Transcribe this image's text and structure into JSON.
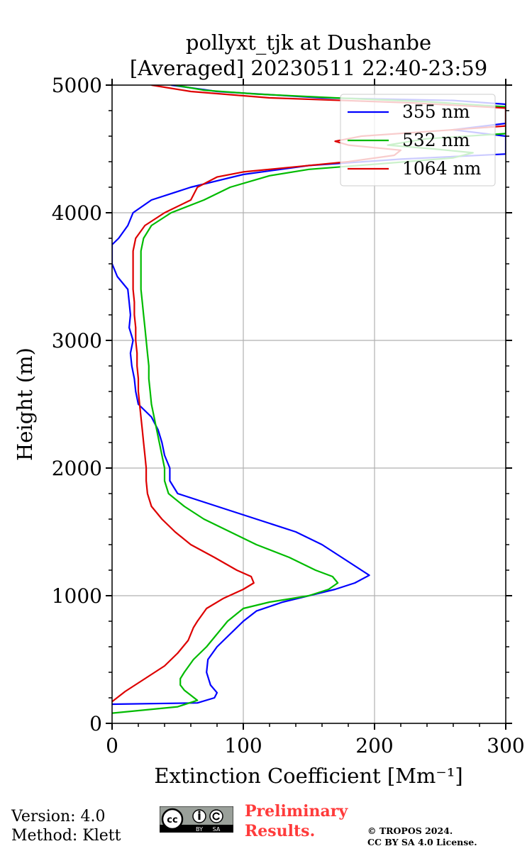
{
  "chart_data": {
    "type": "line",
    "title": "pollyxt_tjk at Dushanbe",
    "subtitle": "[Averaged] 20230511 22:40-23:59",
    "xlabel": "Extinction Coefficient [Mm⁻¹]",
    "ylabel": "Height (m)",
    "xlim": [
      0,
      300
    ],
    "ylim": [
      0,
      5000
    ],
    "xticks": [
      0,
      100,
      200,
      300
    ],
    "yticks": [
      0,
      1000,
      2000,
      3000,
      4000,
      5000
    ],
    "grid": true,
    "legend_position": "top-right",
    "series": [
      {
        "name": "355 nm",
        "color": "#0000ff",
        "points": [
          [
            0,
            150
          ],
          [
            65,
            160
          ],
          [
            78,
            200
          ],
          [
            80,
            240
          ],
          [
            75,
            300
          ],
          [
            72,
            400
          ],
          [
            73,
            500
          ],
          [
            80,
            600
          ],
          [
            90,
            700
          ],
          [
            100,
            800
          ],
          [
            110,
            880
          ],
          [
            130,
            950
          ],
          [
            150,
            1000
          ],
          [
            170,
            1050
          ],
          [
            185,
            1100
          ],
          [
            196,
            1160
          ],
          [
            190,
            1200
          ],
          [
            175,
            1300
          ],
          [
            160,
            1400
          ],
          [
            140,
            1500
          ],
          [
            110,
            1600
          ],
          [
            80,
            1700
          ],
          [
            50,
            1800
          ],
          [
            44,
            1900
          ],
          [
            44,
            2000
          ],
          [
            40,
            2100
          ],
          [
            38,
            2200
          ],
          [
            35,
            2300
          ],
          [
            30,
            2400
          ],
          [
            20,
            2500
          ],
          [
            18,
            2600
          ],
          [
            17,
            2700
          ],
          [
            15,
            2800
          ],
          [
            14,
            2900
          ],
          [
            16,
            3000
          ],
          [
            13,
            3100
          ],
          [
            14,
            3200
          ],
          [
            13,
            3300
          ],
          [
            12,
            3400
          ],
          [
            4,
            3500
          ],
          [
            0,
            3600
          ],
          [
            0,
            3750
          ],
          [
            5,
            3800
          ],
          [
            12,
            3900
          ],
          [
            16,
            4000
          ],
          [
            30,
            4100
          ],
          [
            60,
            4200
          ],
          [
            100,
            4300
          ],
          [
            150,
            4370
          ],
          [
            220,
            4420
          ],
          [
            300,
            4460
          ],
          [
            300,
            4600
          ],
          [
            260,
            4650
          ],
          [
            300,
            4700
          ],
          [
            300,
            4850
          ],
          [
            260,
            4880
          ],
          [
            160,
            4900
          ],
          [
            80,
            4950
          ],
          [
            45,
            5000
          ]
        ]
      },
      {
        "name": "532 nm",
        "color": "#00bb00",
        "points": [
          [
            0,
            80
          ],
          [
            50,
            130
          ],
          [
            65,
            180
          ],
          [
            60,
            220
          ],
          [
            55,
            260
          ],
          [
            52,
            300
          ],
          [
            52,
            350
          ],
          [
            55,
            400
          ],
          [
            62,
            500
          ],
          [
            72,
            600
          ],
          [
            80,
            700
          ],
          [
            88,
            800
          ],
          [
            100,
            900
          ],
          [
            120,
            950
          ],
          [
            150,
            1000
          ],
          [
            165,
            1050
          ],
          [
            172,
            1100
          ],
          [
            168,
            1150
          ],
          [
            155,
            1200
          ],
          [
            135,
            1300
          ],
          [
            110,
            1400
          ],
          [
            90,
            1500
          ],
          [
            70,
            1600
          ],
          [
            55,
            1700
          ],
          [
            43,
            1800
          ],
          [
            40,
            1900
          ],
          [
            40,
            2000
          ],
          [
            38,
            2100
          ],
          [
            36,
            2200
          ],
          [
            34,
            2300
          ],
          [
            32,
            2400
          ],
          [
            30,
            2500
          ],
          [
            29,
            2600
          ],
          [
            28,
            2700
          ],
          [
            28,
            2800
          ],
          [
            27,
            2900
          ],
          [
            26,
            3000
          ],
          [
            25,
            3100
          ],
          [
            24,
            3200
          ],
          [
            23,
            3300
          ],
          [
            22,
            3400
          ],
          [
            22,
            3500
          ],
          [
            22,
            3600
          ],
          [
            22,
            3700
          ],
          [
            24,
            3800
          ],
          [
            30,
            3900
          ],
          [
            45,
            4000
          ],
          [
            70,
            4100
          ],
          [
            90,
            4200
          ],
          [
            120,
            4290
          ],
          [
            150,
            4340
          ],
          [
            200,
            4380
          ],
          [
            260,
            4430
          ],
          [
            275,
            4470
          ],
          [
            245,
            4500
          ],
          [
            210,
            4530
          ],
          [
            240,
            4580
          ],
          [
            300,
            4620
          ],
          [
            300,
            4830
          ],
          [
            240,
            4870
          ],
          [
            170,
            4900
          ],
          [
            110,
            4930
          ],
          [
            70,
            4960
          ],
          [
            48,
            5000
          ]
        ]
      },
      {
        "name": "1064 nm",
        "color": "#dd0000",
        "points": [
          [
            0,
            170
          ],
          [
            10,
            250
          ],
          [
            25,
            350
          ],
          [
            40,
            450
          ],
          [
            50,
            550
          ],
          [
            58,
            650
          ],
          [
            62,
            750
          ],
          [
            65,
            800
          ],
          [
            72,
            900
          ],
          [
            85,
            980
          ],
          [
            100,
            1050
          ],
          [
            108,
            1100
          ],
          [
            106,
            1150
          ],
          [
            95,
            1200
          ],
          [
            78,
            1300
          ],
          [
            60,
            1400
          ],
          [
            48,
            1500
          ],
          [
            38,
            1600
          ],
          [
            30,
            1700
          ],
          [
            27,
            1800
          ],
          [
            26,
            1900
          ],
          [
            26,
            2000
          ],
          [
            25,
            2100
          ],
          [
            24,
            2200
          ],
          [
            23,
            2300
          ],
          [
            22,
            2400
          ],
          [
            21,
            2500
          ],
          [
            20,
            2600
          ],
          [
            20,
            2700
          ],
          [
            19,
            2800
          ],
          [
            19,
            2900
          ],
          [
            18,
            3000
          ],
          [
            18,
            3100
          ],
          [
            17,
            3200
          ],
          [
            17,
            3300
          ],
          [
            16,
            3400
          ],
          [
            16,
            3500
          ],
          [
            16,
            3600
          ],
          [
            16,
            3700
          ],
          [
            18,
            3800
          ],
          [
            25,
            3900
          ],
          [
            40,
            4000
          ],
          [
            60,
            4100
          ],
          [
            65,
            4200
          ],
          [
            80,
            4280
          ],
          [
            100,
            4320
          ],
          [
            140,
            4360
          ],
          [
            180,
            4400
          ],
          [
            215,
            4450
          ],
          [
            220,
            4490
          ],
          [
            180,
            4530
          ],
          [
            170,
            4560
          ],
          [
            190,
            4600
          ],
          [
            260,
            4650
          ],
          [
            300,
            4680
          ],
          [
            300,
            4820
          ],
          [
            230,
            4860
          ],
          [
            120,
            4900
          ],
          [
            60,
            4950
          ],
          [
            30,
            5000
          ]
        ]
      }
    ]
  },
  "footer": {
    "version": "Version: 4.0",
    "method": "Method: Klett",
    "cc_left": "cc",
    "cc_by": "BY",
    "cc_sa": "SA",
    "preliminary_line1": "Preliminary",
    "preliminary_line2": "Results.",
    "copyright_line1": "© TROPOS 2024.",
    "copyright_line2": "CC BY SA 4.0 License."
  }
}
